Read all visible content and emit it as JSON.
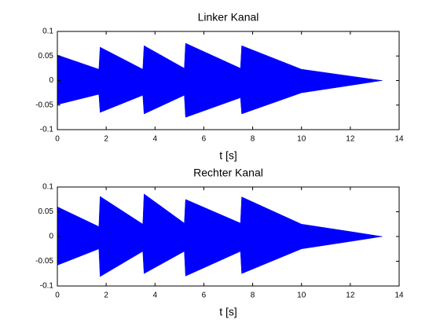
{
  "chart_data": [
    {
      "type": "band",
      "title": "Linker Kanal",
      "xlabel": "t [s]",
      "x": [
        0,
        1.7,
        1.75,
        3.5,
        3.55,
        5.2,
        5.25,
        7.5,
        7.55,
        10,
        12,
        13.3
      ],
      "high": [
        0.052,
        0.023,
        0.068,
        0.023,
        0.071,
        0.025,
        0.076,
        0.025,
        0.071,
        0.023,
        0.009,
        0
      ],
      "low": [
        -0.049,
        -0.028,
        -0.065,
        -0.03,
        -0.068,
        -0.03,
        -0.075,
        -0.035,
        -0.068,
        -0.025,
        -0.01,
        0
      ],
      "color": "#0000ff",
      "xlim": [
        0,
        14
      ],
      "xticks": [
        0,
        2,
        4,
        6,
        8,
        10,
        12,
        14
      ],
      "ylim": [
        -0.1,
        0.1
      ],
      "yticks": [
        -0.1,
        -0.05,
        0,
        0.05,
        0.1
      ],
      "grid": false
    },
    {
      "type": "band",
      "title": "Rechter Kanal",
      "xlabel": "t [s]",
      "x": [
        0,
        1.7,
        1.75,
        3.5,
        3.55,
        5.2,
        5.25,
        7.5,
        7.55,
        10,
        12,
        13.3
      ],
      "high": [
        0.06,
        0.02,
        0.081,
        0.025,
        0.086,
        0.027,
        0.075,
        0.027,
        0.08,
        0.025,
        0.01,
        0
      ],
      "low": [
        -0.058,
        -0.025,
        -0.081,
        -0.03,
        -0.075,
        -0.03,
        -0.08,
        -0.03,
        -0.075,
        -0.025,
        -0.01,
        0
      ],
      "color": "#0000ff",
      "xlim": [
        0,
        14
      ],
      "xticks": [
        0,
        2,
        4,
        6,
        8,
        10,
        12,
        14
      ],
      "ylim": [
        -0.1,
        0.1
      ],
      "yticks": [
        -0.1,
        -0.05,
        0,
        0.05,
        0.1
      ],
      "grid": false
    }
  ]
}
